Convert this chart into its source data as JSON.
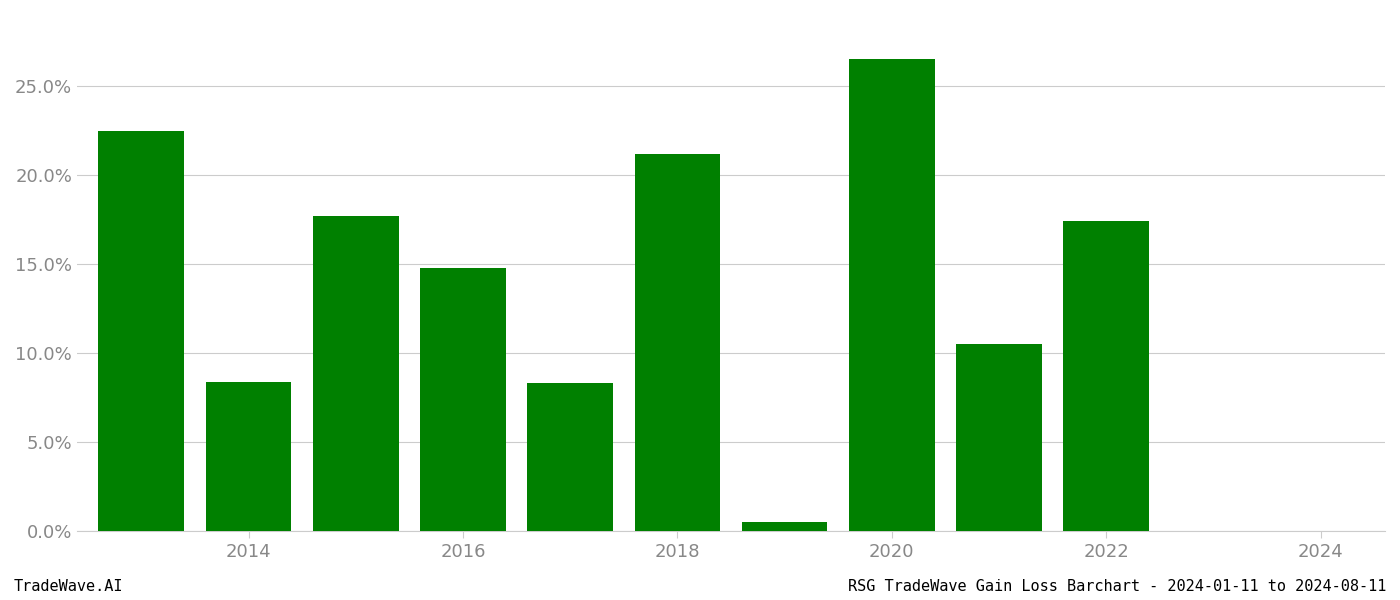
{
  "years": [
    2013,
    2014,
    2015,
    2016,
    2017,
    2018,
    2019,
    2020,
    2021,
    2022,
    2023
  ],
  "values": [
    0.225,
    0.084,
    0.177,
    0.148,
    0.083,
    0.212,
    0.005,
    0.265,
    0.105,
    0.174,
    0.0
  ],
  "bar_color": "#008000",
  "xtick_positions": [
    2014,
    2016,
    2018,
    2020,
    2022,
    2024
  ],
  "xtick_labels": [
    "2014",
    "2016",
    "2018",
    "2020",
    "2022",
    "2024"
  ],
  "ytick_values": [
    0.0,
    0.05,
    0.1,
    0.15,
    0.2,
    0.25
  ],
  "ytick_labels": [
    "0.0%",
    "5.0%",
    "10.0%",
    "15.0%",
    "20.0%",
    "25.0%"
  ],
  "ylim": [
    0.0,
    0.29
  ],
  "xlim": [
    2012.4,
    2024.6
  ],
  "footer_left": "TradeWave.AI",
  "footer_right": "RSG TradeWave Gain Loss Barchart - 2024-01-11 to 2024-08-11",
  "bar_width": 0.8,
  "background_color": "#ffffff",
  "grid_color": "#cccccc",
  "text_color": "#888888",
  "footer_fontsize": 11,
  "tick_fontsize": 13
}
